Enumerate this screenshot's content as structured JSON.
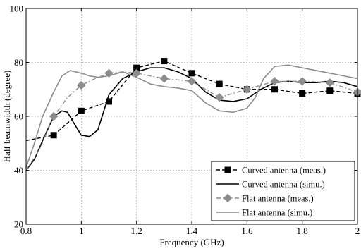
{
  "chart_data": {
    "type": "line",
    "xlabel": "Frequency (GHz)",
    "ylabel": "Half beamwidth (degree)",
    "xlim": [
      0.8,
      2.0
    ],
    "ylim": [
      20,
      100
    ],
    "xticks": [
      0.8,
      1.0,
      1.2,
      1.4,
      1.6,
      1.8,
      2.0
    ],
    "xtick_labels": [
      "0.8",
      "1",
      "1.2",
      "1.4",
      "1.6",
      "1.8",
      "2"
    ],
    "yticks": [
      20,
      40,
      60,
      80,
      100
    ],
    "ytick_labels": [
      "20",
      "40",
      "60",
      "80",
      "100"
    ],
    "grid": true,
    "legend_position": "bottom-right",
    "series": [
      {
        "name": "Curved antenna (meas.)",
        "color": "#000000",
        "dash": "dashed",
        "marker": "square",
        "x": [
          0.8,
          0.9,
          1.0,
          1.1,
          1.2,
          1.3,
          1.4,
          1.5,
          1.6,
          1.7,
          1.8,
          1.9,
          2.0
        ],
        "y": [
          51,
          53,
          62,
          65.5,
          78,
          80.5,
          76,
          72,
          70,
          70,
          68.5,
          69.5,
          68.5
        ],
        "marker_x": [
          0.9,
          1.0,
          1.1,
          1.2,
          1.3,
          1.4,
          1.5,
          1.6,
          1.7,
          1.8,
          1.9,
          2.0
        ],
        "marker_y": [
          53,
          62,
          65.5,
          78,
          80.5,
          76,
          72,
          70,
          70,
          68.5,
          69.5,
          68.5
        ]
      },
      {
        "name": "Curved antenna (simu.)",
        "color": "#000000",
        "dash": "solid",
        "marker": "none",
        "x": [
          0.8,
          0.83,
          0.86,
          0.9,
          0.93,
          0.95,
          0.97,
          1.0,
          1.03,
          1.06,
          1.1,
          1.15,
          1.2,
          1.25,
          1.3,
          1.35,
          1.4,
          1.45,
          1.5,
          1.55,
          1.6,
          1.65,
          1.7,
          1.75,
          1.8,
          1.85,
          1.9,
          1.95,
          2.0
        ],
        "y": [
          40,
          44,
          51,
          60,
          62,
          61.5,
          58,
          53,
          52.5,
          55,
          68,
          74,
          76.5,
          78,
          78,
          76.5,
          74,
          69,
          66,
          65.5,
          66.5,
          70,
          72.5,
          73,
          72.5,
          72.5,
          73,
          72.5,
          71
        ]
      },
      {
        "name": "Flat antenna (meas.)",
        "color": "#8c8c8c",
        "dash": "dashdot",
        "marker": "diamond",
        "x": [
          0.8,
          0.85,
          0.9,
          0.95,
          1.0,
          1.05,
          1.1,
          1.15,
          1.2,
          1.3,
          1.4,
          1.5,
          1.6,
          1.7,
          1.8,
          1.9,
          2.0
        ],
        "y": [
          40,
          48,
          60,
          67,
          71.5,
          74,
          76,
          76.5,
          76,
          74,
          73,
          67,
          70,
          73,
          73,
          72.5,
          69
        ],
        "marker_x": [
          0.9,
          1.0,
          1.1,
          1.2,
          1.3,
          1.4,
          1.5,
          1.6,
          1.7,
          1.8,
          1.9,
          2.0
        ],
        "marker_y": [
          60,
          71.5,
          76,
          76,
          74,
          73,
          67,
          70,
          73,
          73,
          72.5,
          69
        ]
      },
      {
        "name": "Flat antenna (simu.)",
        "color": "#8c8c8c",
        "dash": "solid",
        "marker": "none",
        "x": [
          0.8,
          0.83,
          0.86,
          0.9,
          0.93,
          0.96,
          1.0,
          1.03,
          1.06,
          1.1,
          1.15,
          1.2,
          1.25,
          1.3,
          1.35,
          1.4,
          1.45,
          1.5,
          1.55,
          1.6,
          1.63,
          1.66,
          1.7,
          1.75,
          1.8,
          1.85,
          1.9,
          1.95,
          2.0
        ],
        "y": [
          41,
          50,
          60,
          69,
          75,
          77,
          76,
          75,
          74.5,
          75,
          76.5,
          74.5,
          72,
          71,
          70.5,
          69.5,
          65,
          62,
          61.5,
          63,
          67,
          74,
          78.5,
          79,
          78,
          77,
          76,
          75,
          74
        ]
      }
    ]
  }
}
